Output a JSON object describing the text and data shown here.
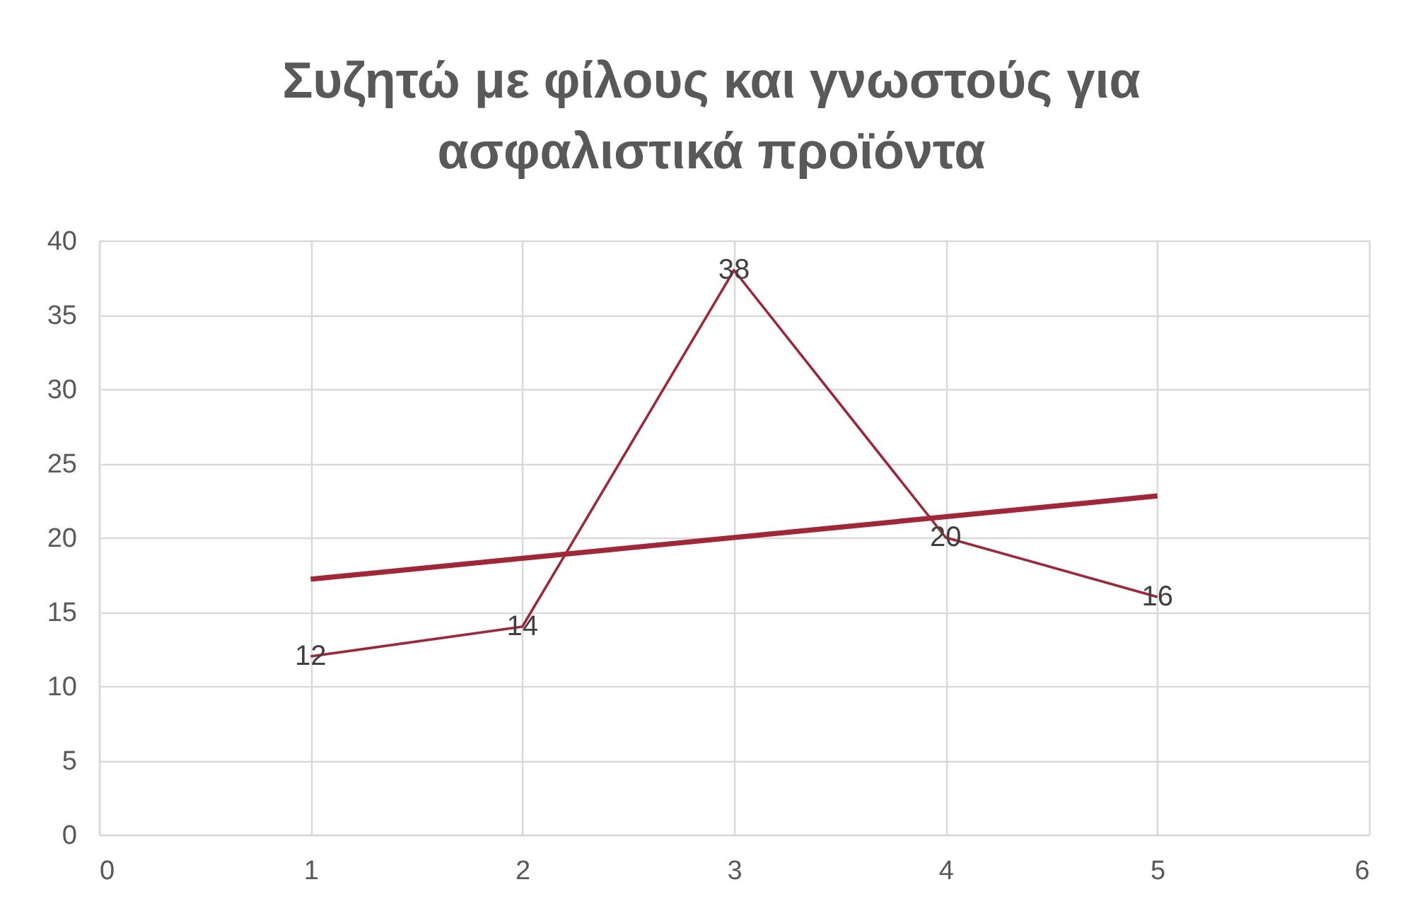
{
  "chart_data": {
    "type": "line",
    "title": "Συζητώ με φίλους και γνωστούς για ασφαλιστικά προϊόντα",
    "x": [
      1,
      2,
      3,
      4,
      5
    ],
    "series": [
      {
        "color": "#a32638",
        "values": [
          12,
          14,
          38,
          20,
          16
        ],
        "value_labels": [
          "12",
          "14",
          "38",
          "20",
          "16"
        ]
      },
      {
        "type": "line",
        "x": [
          1,
          5
        ],
        "values": [
          17.2,
          22.8
        ],
        "color": "#a32638"
      }
    ],
    "xlim": [
      0,
      6
    ],
    "xticks": [
      0,
      1,
      2,
      3,
      4,
      5,
      6
    ],
    "ylim": [
      0,
      40
    ],
    "yticks": [
      0,
      5,
      10,
      15,
      20,
      25,
      30,
      35,
      40
    ],
    "grid": true,
    "marker": "none",
    "line_style": "solid"
  }
}
